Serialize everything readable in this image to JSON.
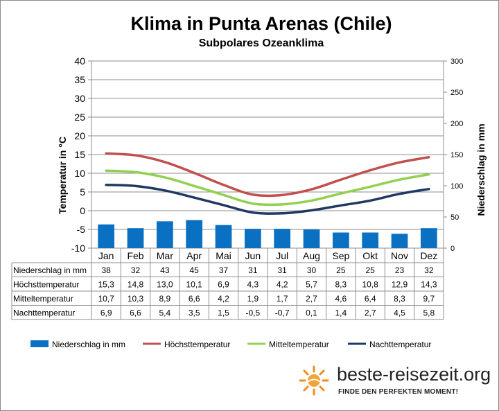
{
  "title": "Klima in Punta Arenas (Chile)",
  "subtitle": "Subpolares Ozeanklima",
  "logo": {
    "name": "beste-reisezeit.org",
    "slogan": "FINDE DEN PERFEKTEN MOMENT!"
  },
  "colors": {
    "precip": "#0a70c2",
    "max": "#c0504d",
    "mean": "#92d050",
    "min": "#1f3864"
  },
  "chart_data": {
    "type": "bar+line",
    "categories": [
      "Jan",
      "Feb",
      "Mar",
      "Apr",
      "Mai",
      "Jun",
      "Jul",
      "Aug",
      "Sep",
      "Okt",
      "Nov",
      "Dez"
    ],
    "y_left": {
      "label": "Temperatur in °C",
      "min": -10,
      "max": 40,
      "ticks": [
        -10,
        -5,
        0,
        5,
        10,
        15,
        20,
        25,
        30,
        35,
        40
      ]
    },
    "y_right": {
      "label": "Niederschlag in mm",
      "min": 0,
      "max": 300,
      "ticks": [
        0,
        50,
        100,
        150,
        200,
        250,
        300
      ]
    },
    "series": [
      {
        "key": "precip",
        "name": "Niederschlag in mm",
        "type": "bar",
        "axis": "right",
        "values": [
          38,
          32,
          43,
          45,
          37,
          31,
          31,
          30,
          25,
          25,
          23,
          32
        ],
        "labels": [
          "38",
          "32",
          "43",
          "45",
          "37",
          "31",
          "31",
          "30",
          "25",
          "25",
          "23",
          "32"
        ]
      },
      {
        "key": "max",
        "name": "Höchsttemperatur",
        "type": "line",
        "axis": "left",
        "values": [
          15.3,
          14.8,
          13.0,
          10.1,
          6.9,
          4.3,
          4.2,
          5.7,
          8.3,
          10.8,
          12.9,
          14.3
        ],
        "labels": [
          "15,3",
          "14,8",
          "13,0",
          "10,1",
          "6,9",
          "4,3",
          "4,2",
          "5,7",
          "8,3",
          "10,8",
          "12,9",
          "14,3"
        ]
      },
      {
        "key": "mean",
        "name": "Mitteltemperatur",
        "type": "line",
        "axis": "left",
        "values": [
          10.7,
          10.3,
          8.9,
          6.6,
          4.2,
          1.9,
          1.7,
          2.7,
          4.6,
          6.4,
          8.3,
          9.7
        ],
        "labels": [
          "10,7",
          "10,3",
          "8,9",
          "6,6",
          "4,2",
          "1,9",
          "1,7",
          "2,7",
          "4,6",
          "6,4",
          "8,3",
          "9,7"
        ]
      },
      {
        "key": "min",
        "name": "Nachttemperatur",
        "type": "line",
        "axis": "left",
        "values": [
          6.9,
          6.6,
          5.4,
          3.5,
          1.5,
          -0.5,
          -0.7,
          0.1,
          1.4,
          2.7,
          4.5,
          5.8
        ],
        "labels": [
          "6,9",
          "6,6",
          "5,4",
          "3,5",
          "1,5",
          "-0,5",
          "-0,7",
          "0,1",
          "1,4",
          "2,7",
          "4,5",
          "5,8"
        ]
      }
    ],
    "table_rows": [
      "Niederschlag in mm",
      "Höchsttemperatur",
      "Mitteltemperatur",
      "Nachttemperatur"
    ],
    "legend_position": "bottom",
    "grid": true
  }
}
